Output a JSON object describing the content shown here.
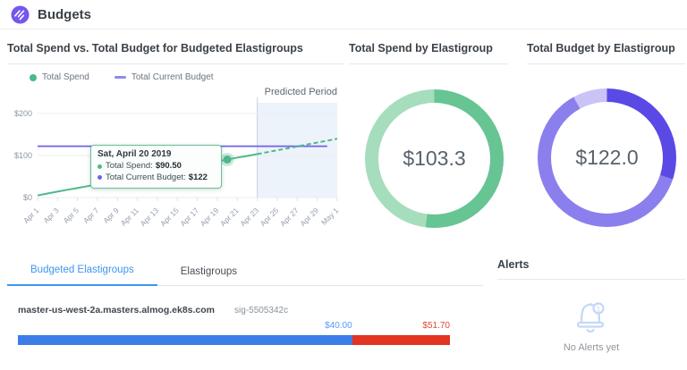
{
  "header": {
    "title": "Budgets"
  },
  "spend_vs_budget": {
    "title": "Total Spend vs. Total Budget for Budgeted Elastigroups",
    "legend": {
      "spend": "Total Spend",
      "budget": "Total Current Budget"
    },
    "predicted_label": "Predicted Period",
    "tooltip": {
      "date": "Sat, April 20 2019",
      "spend_label": "Total Spend:",
      "spend_value": "$90.50",
      "budget_label": "Total Current Budget:",
      "budget_value": "$122"
    }
  },
  "spend_donut": {
    "title": "Total Spend by Elastigroup",
    "value": "$103.3"
  },
  "budget_donut": {
    "title": "Total Budget by Elastigroup",
    "value": "$122.0"
  },
  "tabs": {
    "budgeted": "Budgeted Elastigroups",
    "all": "Elastigroups"
  },
  "budget_row": {
    "name": "master-us-west-2a.masters.almog.ek8s.com",
    "sig": "sig-5505342c",
    "budget_label": "$40.00",
    "spent_label": "$51.70"
  },
  "alerts": {
    "title": "Alerts",
    "empty": "No Alerts yet"
  },
  "chart_data": [
    {
      "type": "line",
      "title": "Total Spend vs. Total Budget for Budgeted Elastigroups",
      "x_labels": [
        "Apr 1",
        "Apr 3",
        "Apr 5",
        "Apr 7",
        "Apr 9",
        "Apr 11",
        "Apr 13",
        "Apr 15",
        "Apr 17",
        "Apr 19",
        "Apr 21",
        "Apr 23",
        "Apr 25",
        "Apr 27",
        "Apr 29",
        "May 1"
      ],
      "x_days_total": 30,
      "ylim": [
        0,
        220
      ],
      "yticks": [
        0,
        100,
        200
      ],
      "ytick_labels": [
        "$0",
        "$100",
        "$200"
      ],
      "predicted_period_start_day_index": 22,
      "series": [
        {
          "name": "Total Spend (actual)",
          "style": "solid",
          "color": "#4eb88a",
          "x_start": 0,
          "values": [
            5,
            9.5,
            14,
            18.5,
            22.5,
            27,
            31.5,
            36,
            40.5,
            45,
            49.5,
            54,
            58.5,
            63,
            67.5,
            72,
            76.5,
            81,
            86,
            90.5,
            95,
            99,
            103.3
          ]
        },
        {
          "name": "Total Spend (predicted)",
          "style": "dashed",
          "color": "#4eb88a",
          "x_start": 22,
          "values": [
            103.3,
            107.9,
            112.5,
            117.1,
            121.7,
            126.3,
            130.9,
            135.4,
            140
          ]
        },
        {
          "name": "Total Current Budget",
          "style": "solid",
          "color": "#6e61e8",
          "value": 122
        }
      ],
      "highlight": {
        "day_index": 19,
        "date": "Sat, April 20 2019",
        "total_spend": 90.5,
        "total_current_budget": 122
      }
    },
    {
      "type": "pie",
      "title": "Total Spend by Elastigroup",
      "center_label": "$103.3",
      "total": 103.3,
      "segments": [
        {
          "pct": 52,
          "color": "#67c493"
        },
        {
          "pct": 48,
          "color": "#a6ddbc"
        }
      ]
    },
    {
      "type": "pie",
      "title": "Total Budget by Elastigroup",
      "center_label": "$122.0",
      "total": 122.0,
      "segments": [
        {
          "pct": 30,
          "color": "#5a49e5"
        },
        {
          "pct": 62,
          "color": "#8b7fee"
        },
        {
          "pct": 8,
          "color": "#c9c3f6"
        }
      ]
    },
    {
      "type": "bar",
      "title": "Budgeted Elastigroup spend vs budget",
      "name": "master-us-west-2a.masters.almog.ek8s.com",
      "budget": 40.0,
      "spent": 51.7,
      "budget_label": "$40.00",
      "spent_label": "$51.70",
      "colors": {
        "within_budget": "#3b7de9",
        "over_budget": "#e23420"
      }
    }
  ]
}
